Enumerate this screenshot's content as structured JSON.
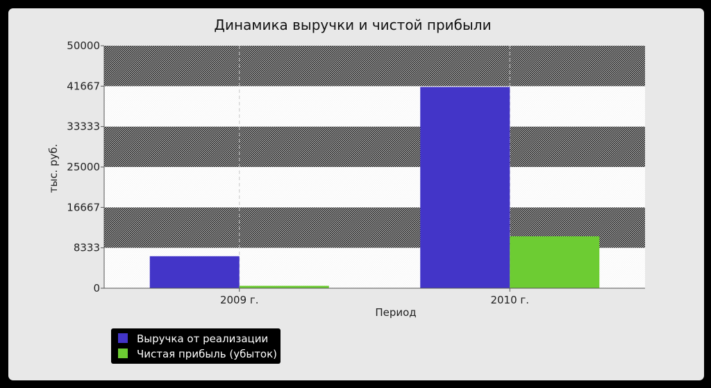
{
  "chart_data": {
    "type": "bar",
    "title": "Динамика выручки и чистой прибыли",
    "xlabel": "Период",
    "ylabel": "тыс. руб.",
    "categories": [
      "2009 г.",
      "2010 г."
    ],
    "series": [
      {
        "name": "Выручка от реализации",
        "values": [
          6600,
          41500
        ],
        "color": "#4335c8"
      },
      {
        "name": "Чистая прибыль (убыток)",
        "values": [
          500,
          10700
        ],
        "color": "#6dcc33"
      }
    ],
    "ylim": [
      0,
      50000
    ],
    "yticks": [
      "0",
      "8333",
      "16667",
      "25000",
      "33333",
      "41667",
      "50000"
    ],
    "grid": true,
    "legend": "bottom-left"
  }
}
